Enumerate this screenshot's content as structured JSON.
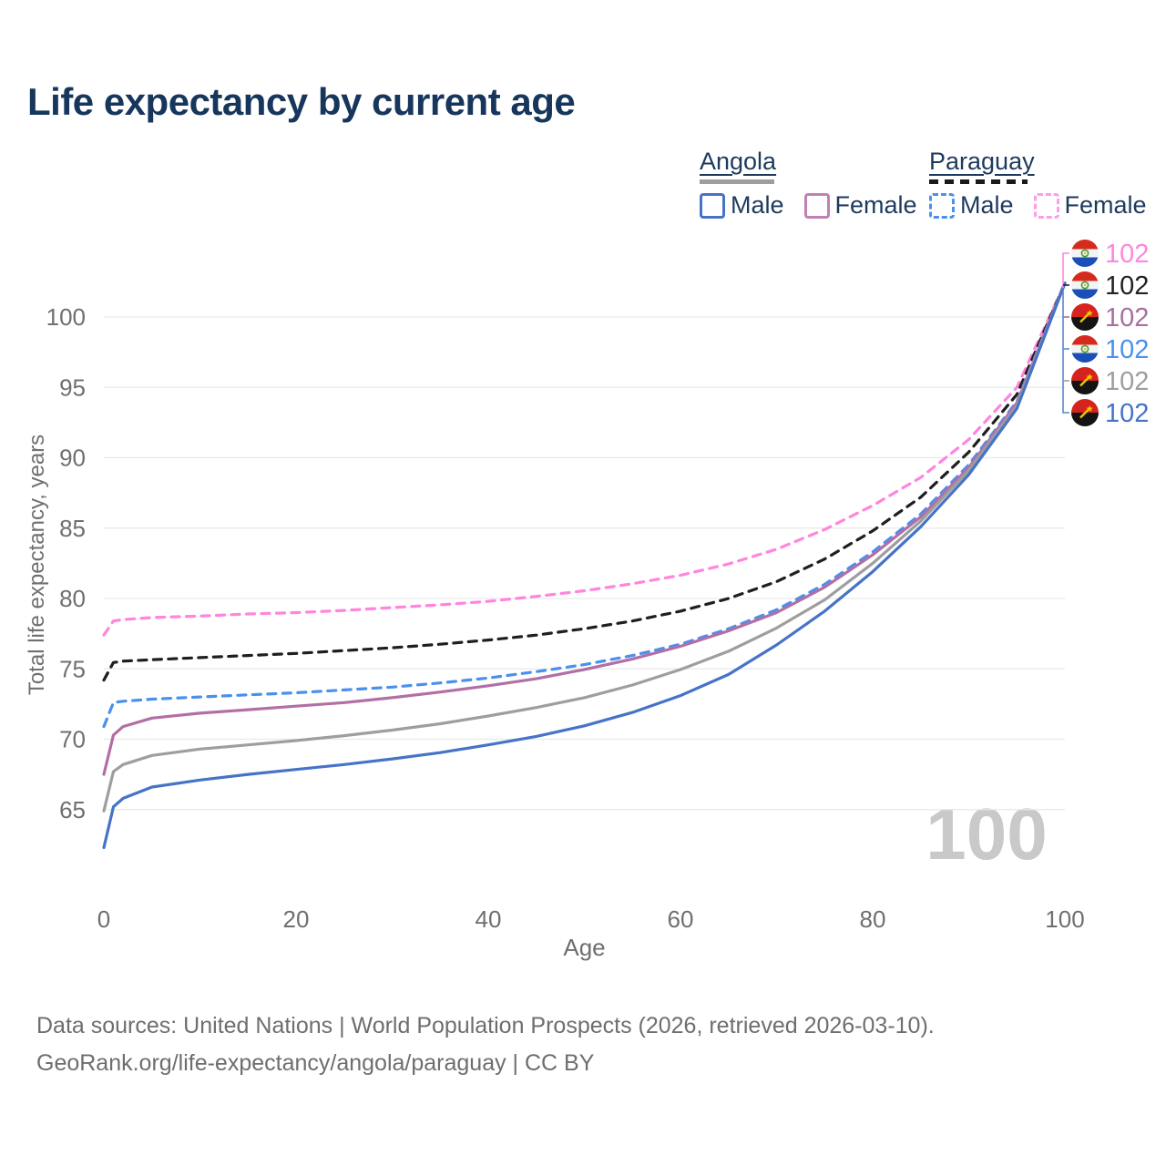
{
  "title": "Life expectancy by current age",
  "legend": {
    "groups": [
      {
        "country": "Angola",
        "line_style": "solid",
        "style_bar_color": "#9e9e9e",
        "items": [
          {
            "label": "Male",
            "color": "#4673c8",
            "dashed": false
          },
          {
            "label": "Female",
            "color": "#bf82b2",
            "dashed": false
          }
        ]
      },
      {
        "country": "Paraguay",
        "line_style": "dashed",
        "style_bar_color": "#1a1a1a",
        "items": [
          {
            "label": "Male",
            "color": "#4a90ee",
            "dashed": true
          },
          {
            "label": "Female",
            "color": "#ff9ce8",
            "dashed": true
          }
        ]
      }
    ]
  },
  "chart_data": {
    "type": "line",
    "title": "Life expectancy by current age",
    "xlabel": "Age",
    "ylabel": "Total life expectancy, years",
    "x_ticks": [
      0,
      20,
      40,
      60,
      80,
      100
    ],
    "y_ticks": [
      65,
      70,
      75,
      80,
      85,
      90,
      95,
      100
    ],
    "xlim": [
      0,
      100
    ],
    "ylim": [
      62,
      103
    ],
    "grid": "horizontal",
    "ages": [
      0,
      1,
      2,
      5,
      10,
      15,
      20,
      25,
      30,
      35,
      40,
      45,
      50,
      55,
      60,
      65,
      70,
      75,
      80,
      85,
      90,
      95,
      100
    ],
    "series": [
      {
        "name": "Paraguay Female",
        "country": "Paraguay",
        "sex": "Female",
        "color": "#ff85dd",
        "dashed": true,
        "values": [
          77.4,
          78.4,
          78.5,
          78.65,
          78.75,
          78.9,
          79.0,
          79.15,
          79.35,
          79.55,
          79.8,
          80.15,
          80.55,
          81.05,
          81.65,
          82.45,
          83.5,
          84.9,
          86.6,
          88.6,
          91.3,
          95.0,
          102.4
        ]
      },
      {
        "name": "Paraguay Both sexes",
        "country": "Paraguay",
        "sex": "Both",
        "color": "#1f1f1f",
        "dashed": true,
        "values": [
          74.2,
          75.45,
          75.55,
          75.65,
          75.8,
          75.95,
          76.1,
          76.3,
          76.5,
          76.75,
          77.05,
          77.4,
          77.85,
          78.4,
          79.1,
          80.0,
          81.2,
          82.8,
          84.8,
          87.2,
          90.4,
          94.5,
          102.4
        ]
      },
      {
        "name": "Paraguay Male",
        "country": "Paraguay",
        "sex": "Male",
        "color": "#4a90ee",
        "dashed": true,
        "values": [
          70.9,
          72.6,
          72.7,
          72.85,
          73.0,
          73.15,
          73.3,
          73.5,
          73.7,
          74.0,
          74.35,
          74.8,
          75.3,
          75.95,
          76.75,
          77.85,
          79.2,
          81.0,
          83.3,
          86.0,
          89.5,
          94.0,
          102.4
        ]
      },
      {
        "name": "Angola Female",
        "country": "Angola",
        "sex": "Female",
        "color": "#b26fa5",
        "dashed": false,
        "values": [
          67.5,
          70.3,
          70.9,
          71.5,
          71.85,
          72.1,
          72.35,
          72.6,
          72.95,
          73.35,
          73.8,
          74.3,
          74.95,
          75.7,
          76.6,
          77.7,
          79.0,
          80.8,
          83.1,
          85.8,
          89.3,
          93.9,
          102.4
        ]
      },
      {
        "name": "Angola Both sexes",
        "country": "Angola",
        "sex": "Both",
        "color": "#9e9e9e",
        "dashed": false,
        "values": [
          64.9,
          67.7,
          68.2,
          68.85,
          69.3,
          69.6,
          69.9,
          70.25,
          70.65,
          71.1,
          71.65,
          72.25,
          72.95,
          73.85,
          74.95,
          76.25,
          77.9,
          79.9,
          82.5,
          85.5,
          89.1,
          93.7,
          102.4
        ]
      },
      {
        "name": "Angola Male",
        "country": "Angola",
        "sex": "Male",
        "color": "#4673c8",
        "dashed": false,
        "values": [
          62.3,
          65.2,
          65.8,
          66.6,
          67.1,
          67.5,
          67.85,
          68.2,
          68.6,
          69.05,
          69.6,
          70.2,
          70.95,
          71.9,
          73.1,
          74.6,
          76.7,
          79.1,
          81.9,
          85.1,
          88.8,
          93.5,
          102.4
        ]
      }
    ],
    "end_labels": [
      {
        "flag": "paraguay",
        "value": "102",
        "color": "#ff85dd"
      },
      {
        "flag": "paraguay",
        "value": "102",
        "color": "#222222"
      },
      {
        "flag": "angola",
        "value": "102",
        "color": "#a76f9e"
      },
      {
        "flag": "paraguay",
        "value": "102",
        "color": "#4a90ee"
      },
      {
        "flag": "angola",
        "value": "102",
        "color": "#9e9e9e"
      },
      {
        "flag": "angola",
        "value": "102",
        "color": "#4673c8"
      }
    ],
    "age_indicator": "100"
  },
  "footer": {
    "line1": "Data sources: United Nations | World Population Prospects (2026, retrieved 2026-03-10).",
    "line2": "GeoRank.org/life-expectancy/angola/paraguay | CC BY"
  }
}
